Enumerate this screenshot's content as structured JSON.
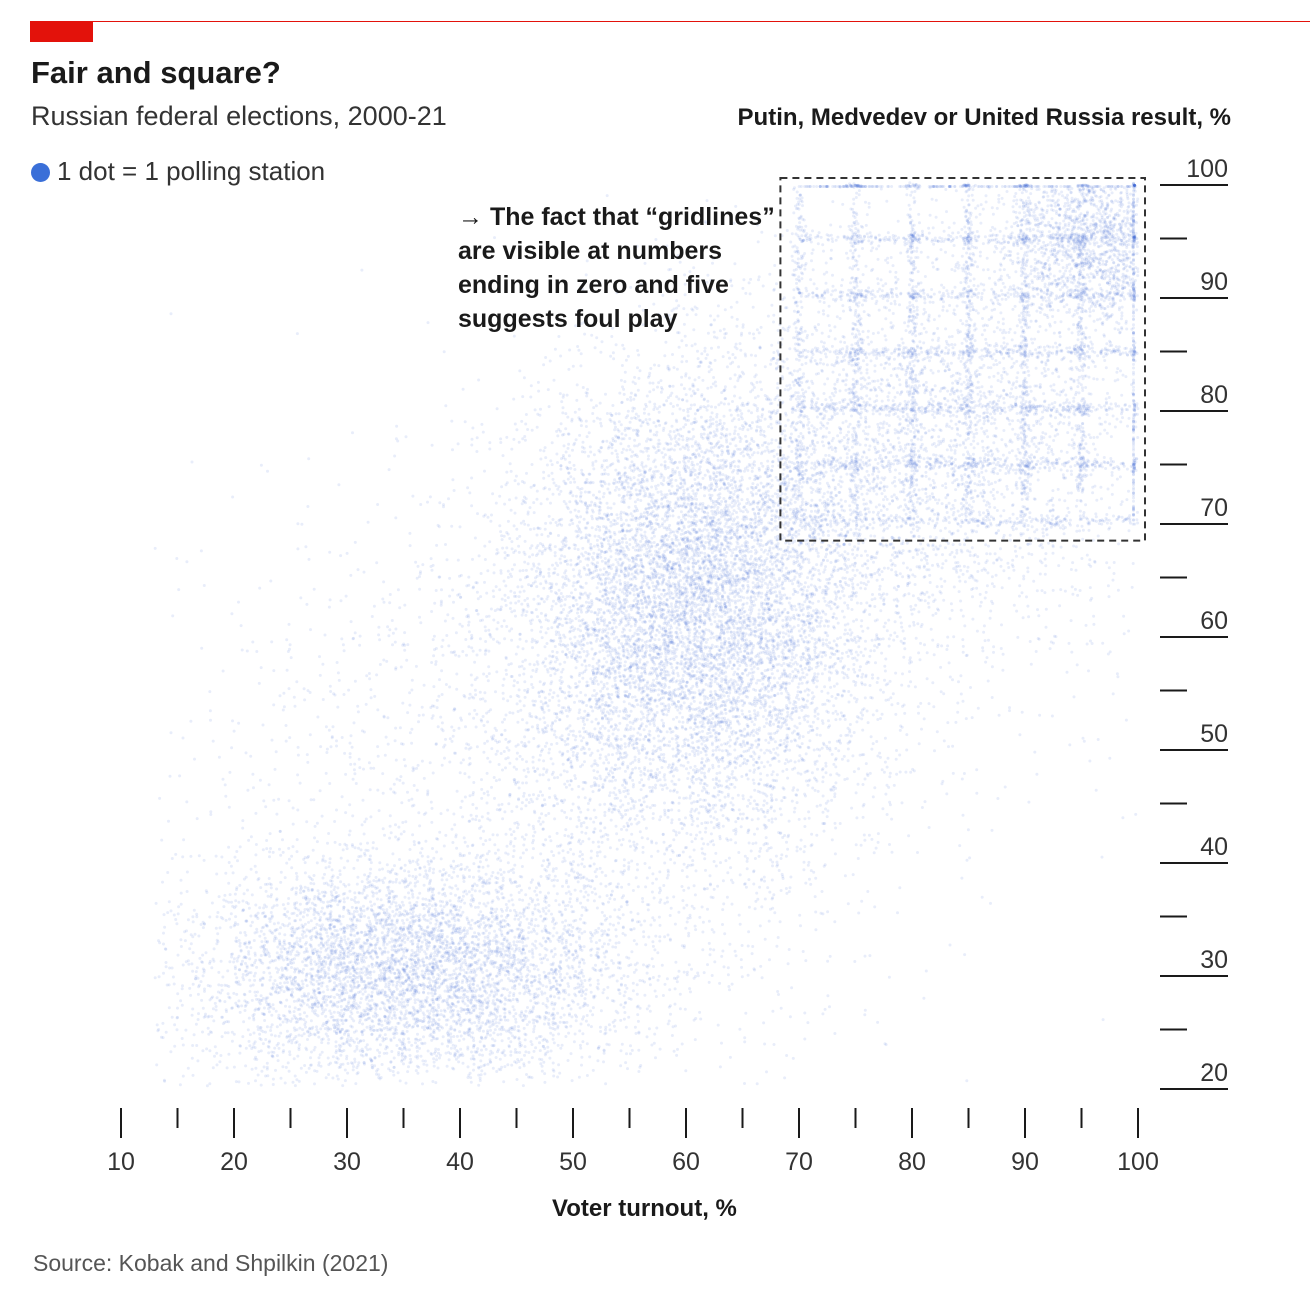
{
  "title": "Fair and square?",
  "subtitle": "Russian federal elections, 2000-21",
  "legend": {
    "text": "1 dot = 1 polling station",
    "color": "#3a6fd8"
  },
  "annotation": {
    "arrow": "→",
    "lines": [
      "The fact that “gridlines”",
      "are visible at numbers",
      "ending in zero and five",
      "suggests foul play"
    ]
  },
  "source": "Source: Kobak and Shpilkin (2021)",
  "colors": {
    "accent": "#e3120b",
    "dots": "#2a5fd0",
    "ink": "#1a1a1a"
  },
  "chart_data": {
    "type": "scatter",
    "ylabel": "Putin, Medvedev or United Russia result, %",
    "xlabel": "Voter turnout, %",
    "xlim": [
      10,
      100
    ],
    "ylim": [
      20,
      100
    ],
    "x_ticks": [
      10,
      20,
      30,
      40,
      50,
      60,
      70,
      80,
      90,
      100
    ],
    "y_ticks": [
      20,
      30,
      40,
      50,
      60,
      70,
      80,
      90,
      100
    ],
    "minor_ticks_at_fives": true,
    "grid": false,
    "highlight_box": {
      "x_range": [
        68,
        100
      ],
      "y_range": [
        68,
        100
      ],
      "style": "dashed"
    },
    "point_density": "one dot per polling station; dense clusters near (60, 65), (30, 30) and (100, 100); concentrations at x and y values ending in 0 and 5 above 70"
  }
}
